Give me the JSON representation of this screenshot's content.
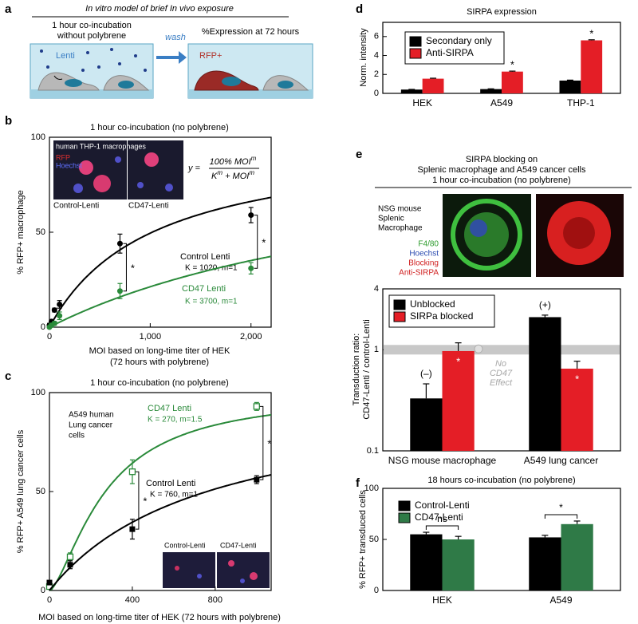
{
  "panel_labels": [
    "a",
    "b",
    "c",
    "d",
    "e",
    "f"
  ],
  "panel_a": {
    "title": "In vitro model of brief In vivo exposure",
    "left_caption_1": "1 hour co-incubation",
    "left_caption_2": "without polybrene",
    "wash": "wash",
    "right_caption": "%Expression at 72 hours",
    "lenti": "Lenti",
    "rfp": "RFP+"
  },
  "panel_e_image": {
    "line1": "NSG mouse",
    "line2": "Splenic",
    "line3": "Macrophage",
    "stain1": "F4/80",
    "stain2": "Hoechst",
    "stain3": "Blocking",
    "stain4": "Anti-SIRPA"
  },
  "chart_data": [
    {
      "type": "scatter",
      "title": "1 hour co-incubation (no polybrene)",
      "ylabel": "% RFP+ macrophage",
      "xlabel": "MOI based on long-time titer of HEK",
      "xlabel2": "(72 hours with polybrene)",
      "xlim": [
        0,
        2200
      ],
      "xticks": [
        0,
        {
          "value": 1000,
          "label": "1,000"
        },
        {
          "value": 2000,
          "label": "2,000"
        }
      ],
      "ylim": [
        0,
        100
      ],
      "yticks": [
        0,
        50,
        100
      ],
      "fit_max": 100,
      "formula": {
        "prefix": "y =",
        "numerator": "100% MOI",
        "exponent": "m",
        "denominator_a": "K",
        "denominator_b": " + MOI"
      },
      "inset": {
        "title": "human THP-1 macrophages",
        "stain1": "RFP",
        "stain2": "Hoechst",
        "left": "Control-Lenti",
        "right": "CD47-Lenti"
      },
      "annotations": [
        "*",
        "*"
      ],
      "series": [
        {
          "name": "Control Lenti",
          "color": "#000000",
          "marker": "circle",
          "fit": {
            "K": 1020,
            "m": 1
          },
          "fit_label": "K = 1020, m=1",
          "x": [
            0,
            20,
            50,
            100,
            700,
            2000
          ],
          "values": [
            1,
            3,
            9,
            12,
            44,
            59
          ],
          "errors": [
            1,
            1,
            1,
            2,
            5,
            4
          ]
        },
        {
          "name": "CD47 Lenti",
          "color": "#2a8a3a",
          "marker": "circle",
          "fit": {
            "K": 3700,
            "m": 1
          },
          "fit_label": "K = 3700, m=1",
          "x": [
            0,
            20,
            50,
            100,
            700,
            2000
          ],
          "values": [
            0,
            1,
            2,
            6,
            19,
            31
          ],
          "errors": [
            0,
            1,
            1,
            2,
            4,
            3
          ]
        }
      ]
    },
    {
      "type": "scatter",
      "title": "1 hour co-incubation (no polybrene)",
      "ylabel": "% RFP+ A549 lung cancer cells",
      "xlabel": "MOI based on long-time titer of HEK (72 hours with polybrene)",
      "xlim": [
        0,
        1070
      ],
      "xticks": [
        0,
        400,
        800
      ],
      "ylim": [
        0,
        100
      ],
      "yticks": [
        0,
        50,
        100
      ],
      "fit_max": 100,
      "inset": {
        "line1": "A549 human",
        "line2": "Lung cancer",
        "line3": "cells",
        "left": "Control-Lenti",
        "right": "CD47-Lenti"
      },
      "annotations": [
        "*",
        "*"
      ],
      "series": [
        {
          "name": "CD47 Lenti",
          "color": "#2a8a3a",
          "marker": "square-open",
          "fit": {
            "K": 270,
            "m": 1.5
          },
          "fit_label": "K = 270, m=1.5",
          "x": [
            0,
            100,
            400,
            1000
          ],
          "values": [
            2,
            17,
            60,
            93
          ],
          "errors": [
            1,
            2,
            6,
            2
          ]
        },
        {
          "name": "Control Lenti",
          "color": "#000000",
          "marker": "square",
          "fit": {
            "K": 760,
            "m": 1
          },
          "fit_label": "K = 760, m=1",
          "x": [
            0,
            100,
            400,
            1000
          ],
          "values": [
            4,
            13,
            31,
            56
          ],
          "errors": [
            1,
            2,
            5,
            2
          ]
        }
      ]
    },
    {
      "type": "bar",
      "title": "SIRPA expression",
      "ylabel": "Norm. intensity",
      "categories": [
        "HEK",
        "A549",
        "THP-1"
      ],
      "ylim": [
        0,
        7.5
      ],
      "yticks": [
        0,
        2,
        4,
        6
      ],
      "annotations": [
        "*",
        "*"
      ],
      "series": [
        {
          "name": "Secondary only",
          "color": "#000000",
          "values": [
            0.4,
            0.45,
            1.35
          ],
          "errors": [
            0.02,
            0.03,
            0.05
          ]
        },
        {
          "name": "Anti-SIRPA",
          "color": "#e41e26",
          "values": [
            1.55,
            2.3,
            5.6
          ],
          "errors": [
            0.05,
            0.05,
            0.06
          ]
        }
      ]
    },
    {
      "type": "bar",
      "title": "SIRPA blocking on",
      "title2": "Splenic macrophage and A549 cancer cells",
      "title3": "1 hour co-incubation (no polybrene)",
      "ylabel": "Transduction ratio:",
      "ylabel2": "CD47-Lenti / control-Lenti",
      "log": true,
      "categories": [
        "NSG mouse macrophage",
        "A549 lung cancer"
      ],
      "ylim": [
        0.1,
        4
      ],
      "yticks": [
        0.1,
        1,
        4
      ],
      "reference": {
        "value": 1,
        "label1": "No",
        "label2": "CD47",
        "label3": "Effect"
      },
      "notes_above": [
        "(–)",
        "(+)"
      ],
      "notes_inside": [
        "*",
        "*"
      ],
      "series": [
        {
          "name": "Unblocked",
          "color": "#000000",
          "values": [
            0.33,
            2.1
          ],
          "errors": [
            0.13,
            0.1
          ]
        },
        {
          "name": "SIRPa blocked",
          "color": "#e41e26",
          "values": [
            0.97,
            0.65
          ],
          "errors": [
            0.2,
            0.12
          ]
        }
      ]
    },
    {
      "type": "bar",
      "title": "18 hours co-incubation (no polybrene)",
      "ylabel": "% RFP+ transduced cells",
      "categories": [
        "HEK",
        "A549"
      ],
      "ylim": [
        0,
        100
      ],
      "yticks": [
        0,
        50,
        100
      ],
      "brackets": [
        "ns",
        "*"
      ],
      "series": [
        {
          "name": "Control-Lenti",
          "color": "#000000",
          "values": [
            55,
            52
          ],
          "errors": [
            2,
            2
          ]
        },
        {
          "name": "CD47-Lenti",
          "color": "#2f7a47",
          "values": [
            50,
            65
          ],
          "errors": [
            3,
            3
          ]
        }
      ]
    }
  ]
}
